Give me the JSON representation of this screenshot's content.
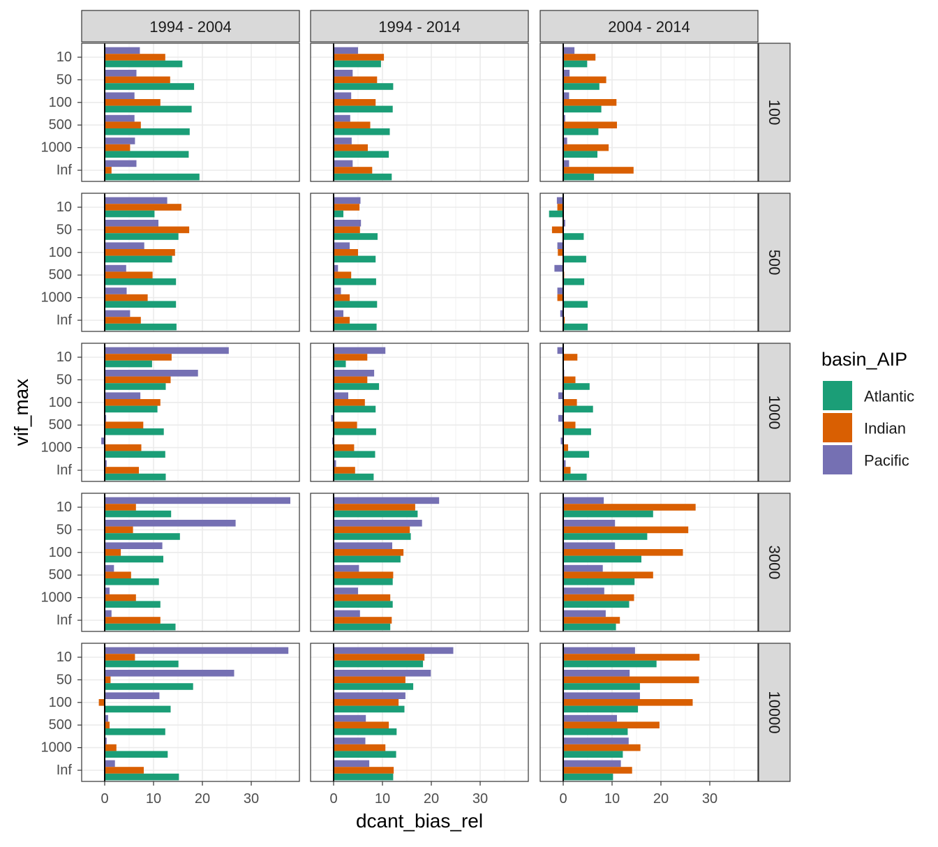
{
  "chart_data": {
    "type": "bar",
    "orientation": "horizontal",
    "xlabel": "dcant_bias_rel",
    "ylabel": "vif_max",
    "categories": [
      "10",
      "50",
      "100",
      "500",
      "1000",
      "Inf"
    ],
    "x_ticks": [
      "0",
      "10",
      "20",
      "30"
    ],
    "xlim": [
      -4.5,
      39.5
    ],
    "grid": true,
    "facet_cols": [
      "1994 - 2004",
      "1994 - 2014",
      "2004 - 2014"
    ],
    "facet_rows": [
      "100",
      "500",
      "1000",
      "3000",
      "10000"
    ],
    "legend": {
      "title": "basin_AIP",
      "position": "right",
      "entries": [
        "Atlantic",
        "Indian",
        "Pacific"
      ]
    },
    "colors": {
      "Atlantic": "#1b9e77",
      "Indian": "#d95f02",
      "Pacific": "#7570b3"
    },
    "panels": [
      [
        {
          "Pacific": [
            7.2,
            6.5,
            6.1,
            6.1,
            6.2,
            6.5
          ],
          "Indian": [
            12.4,
            13.4,
            11.4,
            7.4,
            5.2,
            1.4
          ],
          "Atlantic": [
            15.9,
            18.3,
            17.8,
            17.4,
            17.2,
            19.4
          ]
        },
        {
          "Pacific": [
            5.0,
            3.9,
            3.6,
            3.4,
            3.7,
            3.9
          ],
          "Indian": [
            10.3,
            8.9,
            8.6,
            7.5,
            7.0,
            7.9
          ],
          "Atlantic": [
            9.7,
            12.2,
            12.1,
            11.5,
            11.3,
            11.9
          ]
        },
        {
          "Pacific": [
            2.3,
            1.3,
            1.2,
            0.4,
            0.8,
            1.2
          ],
          "Indian": [
            6.6,
            8.8,
            10.9,
            11.0,
            9.3,
            14.4
          ],
          "Atlantic": [
            4.9,
            7.4,
            7.8,
            7.2,
            7.0,
            6.3
          ]
        }
      ],
      [
        {
          "Pacific": [
            12.8,
            11.0,
            8.1,
            4.4,
            4.5,
            5.2
          ],
          "Indian": [
            15.7,
            17.3,
            14.4,
            9.8,
            8.8,
            7.4
          ],
          "Atlantic": [
            10.2,
            15.1,
            13.8,
            14.6,
            14.6,
            14.7
          ]
        },
        {
          "Pacific": [
            5.5,
            5.6,
            3.3,
            0.9,
            1.5,
            2.0
          ],
          "Indian": [
            5.3,
            5.4,
            5.0,
            3.6,
            3.3,
            3.3
          ],
          "Atlantic": [
            2.0,
            9.0,
            8.6,
            8.7,
            8.9,
            8.8
          ]
        },
        {
          "Pacific": [
            -1.3,
            0.4,
            -1.2,
            -1.8,
            -1.2,
            -0.6
          ],
          "Indian": [
            -1.2,
            -2.3,
            -1.1,
            0.2,
            -1.2,
            0.3
          ],
          "Atlantic": [
            -2.9,
            4.2,
            4.7,
            4.3,
            5.0,
            5.0
          ]
        }
      ],
      [
        {
          "Pacific": [
            25.4,
            19.1,
            7.3,
            0.3,
            -0.7,
            0.4
          ],
          "Indian": [
            13.7,
            13.5,
            11.4,
            7.9,
            7.5,
            7.0
          ],
          "Atlantic": [
            9.7,
            12.5,
            10.8,
            12.1,
            12.4,
            12.5
          ]
        },
        {
          "Pacific": [
            10.6,
            8.3,
            3.0,
            -0.5,
            -0.3,
            0.5
          ],
          "Indian": [
            6.9,
            6.9,
            6.4,
            4.8,
            4.2,
            4.4
          ],
          "Atlantic": [
            2.5,
            9.3,
            8.6,
            8.7,
            8.5,
            8.2
          ]
        },
        {
          "Pacific": [
            -1.2,
            0.2,
            -1.0,
            -1.0,
            -0.5,
            0.5
          ],
          "Indian": [
            2.9,
            2.5,
            2.8,
            2.5,
            1.0,
            1.5
          ],
          "Atlantic": [
            0.0,
            5.4,
            6.1,
            5.7,
            5.3,
            4.8
          ]
        }
      ],
      [
        {
          "Pacific": [
            38.0,
            26.8,
            11.8,
            1.9,
            1.0,
            1.4
          ],
          "Indian": [
            6.4,
            5.8,
            3.3,
            5.4,
            6.4,
            11.4
          ],
          "Atlantic": [
            13.6,
            15.4,
            12.0,
            11.1,
            11.4,
            14.5
          ]
        },
        {
          "Pacific": [
            21.6,
            18.1,
            12.0,
            5.2,
            5.0,
            5.4
          ],
          "Indian": [
            16.7,
            15.6,
            14.3,
            12.2,
            11.6,
            11.9
          ],
          "Atlantic": [
            17.2,
            15.8,
            13.7,
            12.1,
            12.1,
            11.6
          ]
        },
        {
          "Pacific": [
            8.3,
            10.6,
            10.6,
            8.1,
            8.4,
            8.7
          ],
          "Indian": [
            27.1,
            25.6,
            24.5,
            18.4,
            14.5,
            11.6
          ],
          "Atlantic": [
            18.4,
            17.2,
            16.0,
            14.6,
            13.5,
            10.8
          ]
        }
      ],
      [
        {
          "Pacific": [
            37.6,
            26.5,
            11.2,
            0.7,
            0.4,
            2.1
          ],
          "Indian": [
            6.2,
            1.2,
            -1.2,
            1.0,
            2.4,
            8.0
          ],
          "Atlantic": [
            15.1,
            18.1,
            13.5,
            12.4,
            12.9,
            15.2
          ]
        },
        {
          "Pacific": [
            24.5,
            19.9,
            14.7,
            6.6,
            6.5,
            7.3
          ],
          "Indian": [
            18.6,
            14.7,
            13.3,
            11.3,
            10.6,
            12.3
          ],
          "Atlantic": [
            18.3,
            16.3,
            14.5,
            12.9,
            12.8,
            12.2
          ]
        },
        {
          "Pacific": [
            14.7,
            13.6,
            15.7,
            11.0,
            13.4,
            11.8
          ],
          "Indian": [
            27.9,
            27.8,
            26.5,
            19.7,
            15.8,
            14.1
          ],
          "Atlantic": [
            19.1,
            15.7,
            15.3,
            13.2,
            12.2,
            10.2
          ]
        }
      ]
    ]
  }
}
